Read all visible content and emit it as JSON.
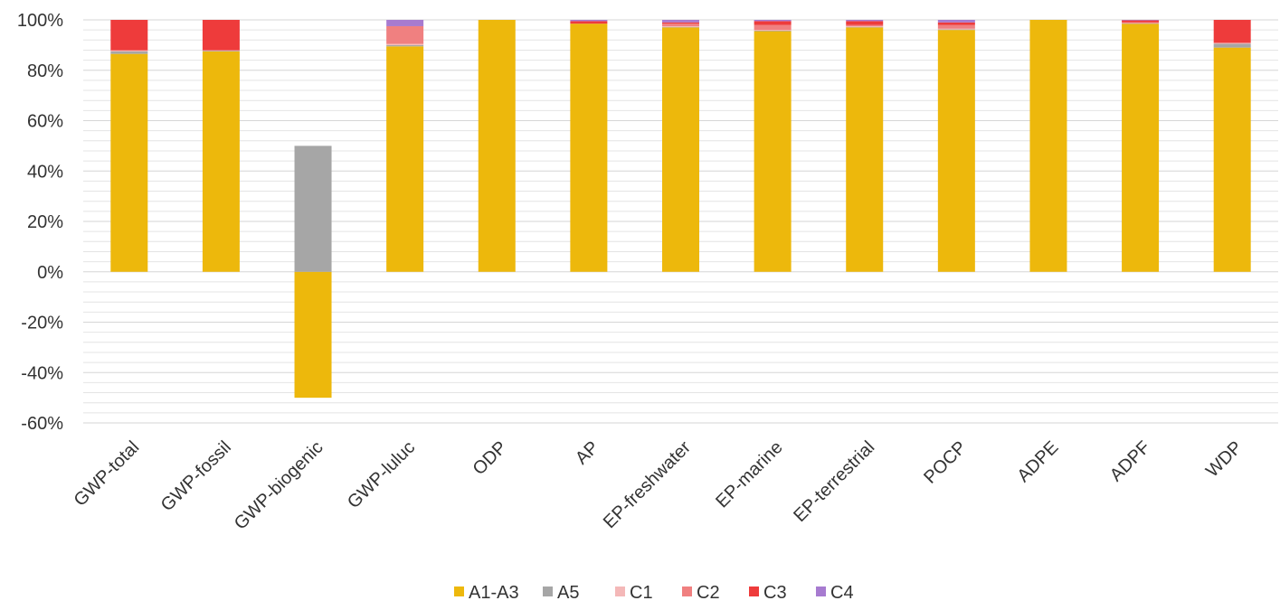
{
  "chart_data": {
    "type": "bar",
    "stacked": true,
    "title": "",
    "xlabel": "",
    "ylabel": "",
    "ylim": [
      -60,
      100
    ],
    "y_ticks": [
      "100%",
      "80%",
      "60%",
      "40%",
      "20%",
      "0%",
      "-20%",
      "-40%",
      "-60%"
    ],
    "y_tick_values": [
      100,
      80,
      60,
      40,
      20,
      0,
      -20,
      -40,
      -60
    ],
    "grid": true,
    "legend_position": "bottom",
    "categories": [
      "GWP-total",
      "GWP-fossil",
      "GWP-biogenic",
      "GWP-luluc",
      "ODP",
      "AP",
      "EP-freshwater",
      "EP-marine",
      "EP-terrestrial",
      "POCP",
      "ADPE",
      "ADPF",
      "WDP"
    ],
    "series": [
      {
        "name": "A1-A3",
        "color": "#EDB80C",
        "values": [
          86.5,
          87.5,
          -50,
          89.5,
          100,
          98.5,
          97,
          95.5,
          97,
          96,
          100,
          98.5,
          89
        ]
      },
      {
        "name": "A5",
        "color": "#A6A6A6",
        "values": [
          1,
          0.3,
          50,
          0.5,
          0,
          0,
          0.2,
          0.2,
          0.2,
          0.2,
          0,
          0.1,
          1.5
        ]
      },
      {
        "name": "C1",
        "color": "#F4B8B8",
        "values": [
          0.2,
          0.1,
          0,
          0.5,
          0,
          0,
          0.3,
          0.3,
          0.2,
          0.3,
          0,
          0.1,
          0.2
        ]
      },
      {
        "name": "C2",
        "color": "#F08080",
        "values": [
          0.3,
          0.1,
          0,
          7,
          0,
          0,
          1,
          2,
          0.6,
          1.5,
          0,
          0.3,
          0.3
        ]
      },
      {
        "name": "C3",
        "color": "#EE3B3B",
        "values": [
          12,
          12,
          0,
          0,
          0,
          1,
          0.5,
          1.5,
          1.5,
          1,
          0,
          0.8,
          9
        ]
      },
      {
        "name": "C4",
        "color": "#A77BD0",
        "values": [
          0,
          0,
          0,
          2.5,
          0,
          0.5,
          1,
          0.5,
          0.5,
          1,
          0,
          0.2,
          0
        ]
      }
    ]
  }
}
